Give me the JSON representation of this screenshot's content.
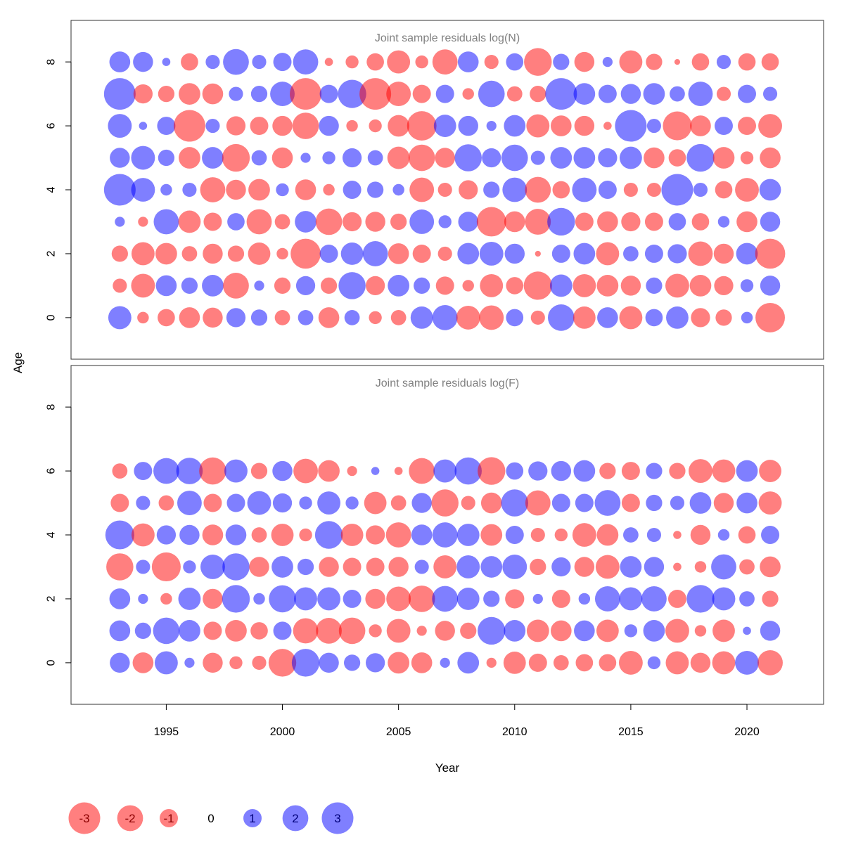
{
  "chart_data": {
    "type": "scatter",
    "subtype": "bubble",
    "xlabel": "Year",
    "ylabel": "Age",
    "x_ticks": [
      1995,
      2000,
      2005,
      2010,
      2015,
      2020
    ],
    "y_ticks": [
      0,
      2,
      4,
      6,
      8
    ],
    "xlim": [
      1990.9,
      2023.3
    ],
    "ylim": [
      -1.3,
      9.3
    ],
    "years": [
      1993,
      1994,
      1995,
      1996,
      1997,
      1998,
      1999,
      2000,
      2001,
      2002,
      2003,
      2004,
      2005,
      2006,
      2007,
      2008,
      2009,
      2010,
      2011,
      2012,
      2013,
      2014,
      2015,
      2016,
      2017,
      2018,
      2019,
      2020,
      2021
    ],
    "colors": {
      "positive": "#0000ff",
      "negative": "#ff0000",
      "fill_opacity": 0.5
    },
    "legend": {
      "labels": [
        "-3",
        "-2",
        "-1",
        "0",
        "1",
        "2",
        "3"
      ],
      "values": [
        -3,
        -2,
        -1,
        0,
        1,
        2,
        3
      ],
      "placement": "bottom-left"
    },
    "panels": [
      {
        "title": "Joint sample residuals log(N)",
        "ages": [
          8,
          7,
          6,
          5,
          4,
          3,
          2,
          1,
          0
        ],
        "residuals": [
          [
            1.3,
            1.2,
            0.2,
            -0.9,
            0.6,
            2.0,
            0.6,
            1.0,
            1.9,
            -0.2,
            -0.5,
            -0.9,
            -1.6,
            -0.5,
            -1.9,
            1.3,
            -0.6,
            0.9,
            -2.3,
            0.8,
            -1.2,
            0.3,
            -1.6,
            -0.8,
            -0.1,
            -0.9,
            0.6,
            -0.9,
            -0.9
          ],
          [
            3.0,
            -1.1,
            -0.8,
            -1.4,
            -1.3,
            0.6,
            0.8,
            1.8,
            -3.0,
            1.0,
            2.4,
            -3.0,
            -1.8,
            -1.0,
            1.0,
            -0.4,
            2.1,
            -0.7,
            -0.8,
            3.0,
            1.4,
            1.0,
            1.2,
            1.4,
            0.7,
            1.8,
            -0.6,
            1.0,
            0.6
          ],
          [
            1.7,
            0.2,
            1.0,
            -3.0,
            0.6,
            -1.1,
            -1.0,
            -1.2,
            -2.1,
            1.2,
            -0.4,
            -0.5,
            -1.4,
            -2.6,
            1.5,
            1.2,
            0.3,
            1.4,
            -1.6,
            -1.3,
            -1.2,
            -0.2,
            3.0,
            0.6,
            -2.5,
            -1.3,
            1.0,
            -1.0,
            -1.7
          ],
          [
            1.2,
            1.7,
            0.8,
            -1.4,
            1.4,
            -2.3,
            0.7,
            -1.3,
            0.3,
            0.5,
            1.1,
            0.7,
            -1.5,
            -2.1,
            -1.2,
            2.2,
            1.1,
            2.1,
            0.6,
            1.4,
            1.4,
            1.1,
            1.5,
            -1.3,
            -0.9,
            2.3,
            -1.4,
            -0.5,
            -1.3
          ],
          [
            3.0,
            1.7,
            0.4,
            0.6,
            -1.9,
            -1.2,
            -1.4,
            0.5,
            -1.3,
            -0.4,
            1.0,
            0.8,
            0.4,
            -1.8,
            -0.6,
            -1.1,
            0.8,
            1.8,
            -2.0,
            -0.9,
            1.8,
            1.0,
            -0.6,
            -0.6,
            3.0,
            0.6,
            -0.9,
            -1.7,
            1.4
          ],
          [
            0.3,
            -0.3,
            1.9,
            -1.5,
            -1.0,
            0.9,
            -1.9,
            -0.7,
            1.4,
            -2.1,
            -1.1,
            -1.2,
            -0.8,
            1.8,
            0.5,
            1.2,
            -2.6,
            -1.3,
            -2.0,
            2.3,
            -1.0,
            -1.3,
            -1.1,
            -1.0,
            0.9,
            -0.9,
            0.4,
            -1.3,
            1.2
          ],
          [
            -0.8,
            -1.6,
            -1.4,
            -0.7,
            -1.2,
            -0.8,
            -1.5,
            -0.4,
            -2.7,
            1.0,
            1.5,
            1.9,
            -1.3,
            -1.0,
            -0.6,
            1.4,
            1.7,
            1.2,
            -0.1,
            1.0,
            1.4,
            -1.6,
            0.7,
            1.0,
            1.1,
            -1.8,
            -1.2,
            1.4,
            -2.7
          ],
          [
            -0.6,
            -1.7,
            1.3,
            0.8,
            1.4,
            -2.0,
            0.3,
            -0.8,
            1.1,
            -0.8,
            2.2,
            -1.1,
            1.4,
            0.8,
            -1.0,
            -0.4,
            -1.6,
            -0.9,
            -2.4,
            1.5,
            -1.6,
            -1.4,
            -1.2,
            0.8,
            -1.7,
            -1.4,
            -1.1,
            0.5,
            1.2
          ],
          [
            1.6,
            -0.4,
            -0.9,
            -1.3,
            -1.2,
            1.1,
            0.8,
            -0.7,
            0.7,
            -1.3,
            0.7,
            -0.5,
            -0.7,
            1.5,
            1.9,
            -1.7,
            -1.8,
            0.9,
            -0.6,
            2.1,
            -1.5,
            1.3,
            -1.6,
            0.9,
            1.5,
            -1.1,
            -0.8,
            0.4,
            -2.6
          ]
        ]
      },
      {
        "title": "Joint sample residuals log(F)",
        "ages": [
          6,
          5,
          4,
          3,
          2,
          1,
          0
        ],
        "residuals": [
          [
            -0.7,
            1.0,
            2.0,
            2.1,
            -2.2,
            1.6,
            -0.8,
            1.2,
            -1.8,
            -1.4,
            -0.3,
            0.2,
            -0.2,
            -2.0,
            1.6,
            2.2,
            -2.3,
            0.9,
            1.1,
            1.2,
            1.4,
            -0.8,
            -1.0,
            0.8,
            -0.8,
            -1.7,
            -1.6,
            1.4,
            -1.5
          ],
          [
            -1.0,
            0.6,
            -0.7,
            1.8,
            -1.0,
            1.0,
            1.7,
            1.1,
            0.5,
            1.6,
            0.5,
            -1.5,
            -0.7,
            1.2,
            -2.2,
            -0.6,
            -1.3,
            2.2,
            -1.9,
            1.0,
            1.0,
            2.0,
            -1.0,
            0.8,
            0.6,
            1.4,
            -1.2,
            1.3,
            -1.6
          ],
          [
            2.5,
            -1.6,
            1.1,
            1.2,
            -1.3,
            1.3,
            -0.7,
            -1.5,
            -0.5,
            2.3,
            -1.5,
            -1.1,
            -1.9,
            1.3,
            1.9,
            1.5,
            -1.4,
            1.0,
            -0.6,
            -0.5,
            -1.7,
            -1.4,
            0.7,
            0.6,
            -0.2,
            -1.2,
            0.4,
            -0.9,
            1.0
          ],
          [
            -2.2,
            0.6,
            -2.5,
            0.5,
            1.8,
            2.2,
            -1.2,
            1.4,
            0.8,
            -1.2,
            -1.0,
            -1.0,
            -1.2,
            0.6,
            -1.6,
            1.6,
            1.4,
            1.8,
            -0.8,
            1.1,
            -1.2,
            -1.7,
            1.4,
            1.2,
            -0.2,
            -0.4,
            1.9,
            -0.7,
            -1.3
          ],
          [
            1.3,
            0.3,
            -0.4,
            1.5,
            -1.2,
            2.3,
            0.4,
            2.2,
            1.6,
            1.6,
            1.0,
            -1.2,
            -1.8,
            -2.1,
            2.0,
            1.5,
            0.8,
            -1.1,
            0.3,
            -1.0,
            0.4,
            1.9,
            1.6,
            1.9,
            -1.0,
            2.3,
            1.6,
            0.7,
            -0.8
          ],
          [
            1.3,
            0.8,
            2.1,
            1.4,
            -1.0,
            -1.4,
            -0.9,
            1.0,
            -1.9,
            -2.0,
            -2.1,
            -0.5,
            -1.7,
            -0.3,
            -1.2,
            -0.8,
            2.3,
            1.4,
            -1.5,
            -1.3,
            1.3,
            -1.5,
            0.5,
            1.4,
            -1.7,
            -0.4,
            -1.5,
            0.2,
            1.2
          ],
          [
            1.2,
            -1.3,
            1.6,
            0.3,
            -1.2,
            -0.5,
            -0.6,
            -2.3,
            2.3,
            1.2,
            0.8,
            1.1,
            -1.4,
            -1.3,
            0.3,
            1.4,
            -0.3,
            -1.5,
            -1.0,
            -0.7,
            -0.9,
            -0.9,
            -1.7,
            0.5,
            -1.6,
            -1.2,
            -1.6,
            1.7,
            -1.9
          ]
        ]
      }
    ]
  }
}
